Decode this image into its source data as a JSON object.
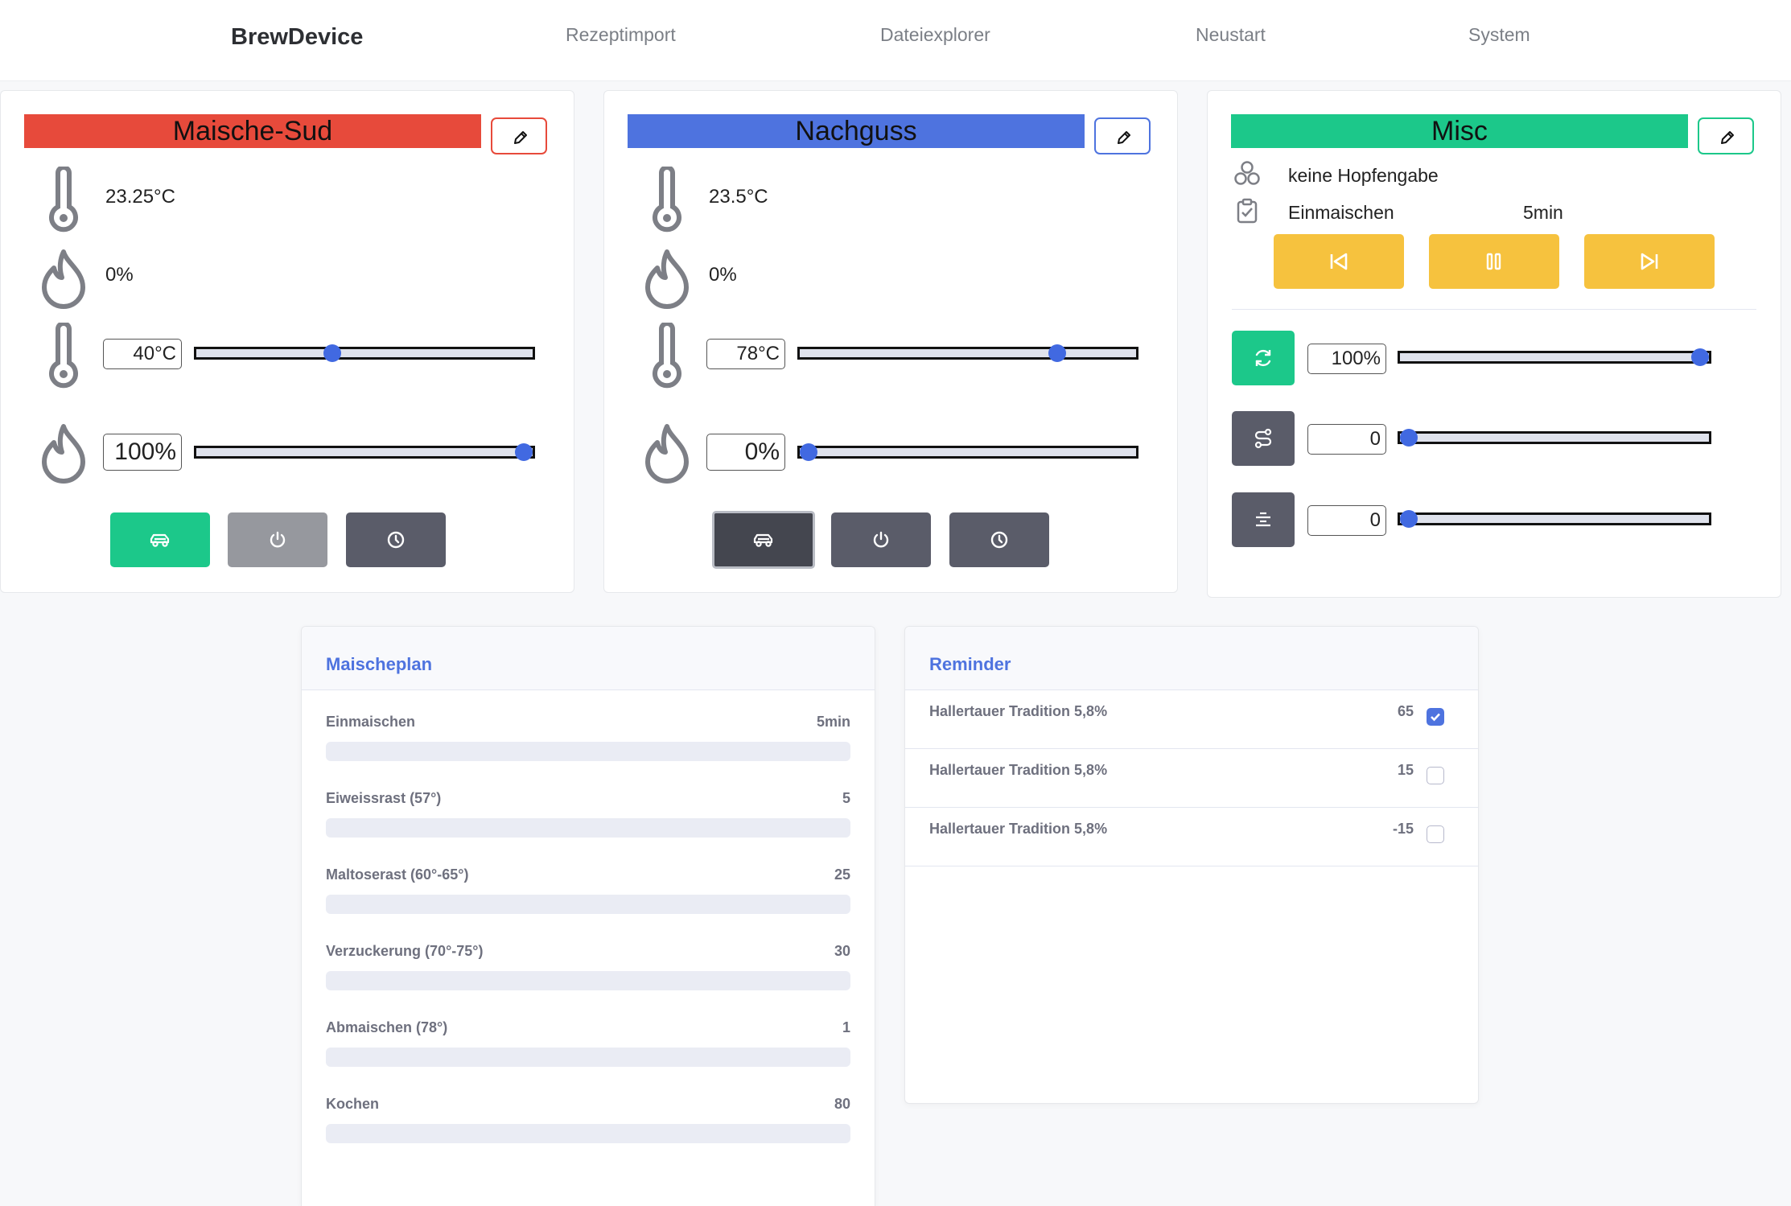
{
  "nav": {
    "brand": "BrewDevice",
    "items": [
      "Rezeptimport",
      "Dateiexplorer",
      "Neustart",
      "System"
    ]
  },
  "colors": {
    "maische": "#e74a3b",
    "nachguss": "#4e73df",
    "misc": "#1cc88a",
    "warning": "#f6c23e",
    "gray": "#858796",
    "dark": "#5a5c69"
  },
  "maische": {
    "title": "Maische-Sud",
    "temp": "23.25°C",
    "power": "0%",
    "target_temp": "40°C",
    "target_temp_value": 40,
    "target_power": "100%",
    "target_power_value": 100,
    "buttons": [
      "car-icon",
      "power-icon",
      "clock-icon"
    ]
  },
  "nachguss": {
    "title": "Nachguss",
    "temp": "23.5°C",
    "power": "0%",
    "target_temp": "78°C",
    "target_temp_value": 78,
    "target_power": "0%",
    "target_power_value": 0,
    "buttons": [
      "car-icon",
      "power-icon",
      "clock-icon"
    ]
  },
  "misc": {
    "title": "Misc",
    "hop_text": "keine Hopfengabe",
    "step_text": "Einmaischen",
    "step_time": "5min",
    "pump": "100%",
    "pump_value": 100,
    "slider2": "0",
    "slider2_value": 0,
    "slider3": "0",
    "slider3_value": 0
  },
  "maischeplan": {
    "title": "Maischeplan",
    "steps": [
      {
        "label": "Einmaischen",
        "value": "5min"
      },
      {
        "label": "Eiweissrast (57°)",
        "value": "5"
      },
      {
        "label": "Maltoserast (60°-65°)",
        "value": "25"
      },
      {
        "label": "Verzuckerung (70°-75°)",
        "value": "30"
      },
      {
        "label": "Abmaischen (78°)",
        "value": "1"
      },
      {
        "label": "Kochen",
        "value": "80"
      }
    ]
  },
  "reminder": {
    "title": "Reminder",
    "items": [
      {
        "label": "Hallertauer Tradition 5,8%",
        "value": "65",
        "checked": true
      },
      {
        "label": "Hallertauer Tradition 5,8%",
        "value": "15",
        "checked": false
      },
      {
        "label": "Hallertauer Tradition 5,8%",
        "value": "-15",
        "checked": false
      }
    ]
  }
}
